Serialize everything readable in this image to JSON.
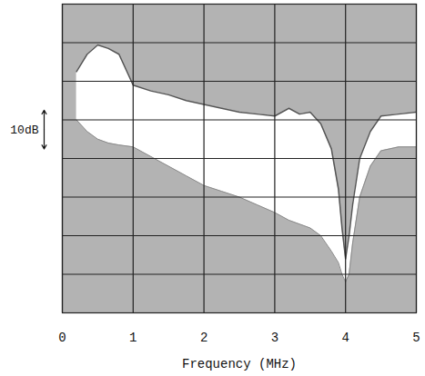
{
  "chart_data": {
    "type": "area",
    "x_label": "Frequency (MHz)",
    "x": [
      0.2,
      0.35,
      0.5,
      0.65,
      0.8,
      1.0,
      1.25,
      1.5,
      1.75,
      2.0,
      2.25,
      2.5,
      2.75,
      3.0,
      3.2,
      3.35,
      3.5,
      3.65,
      3.8,
      3.9,
      3.95,
      4.0,
      4.05,
      4.1,
      4.2,
      4.35,
      4.5,
      4.75,
      5.0
    ],
    "series": [
      {
        "color": "#555555",
        "values": [
          -17.5,
          -13,
          -10.6,
          -11.5,
          -13,
          -21,
          -22.5,
          -23.5,
          -25,
          -26,
          -27,
          -28,
          -28.5,
          -29,
          -27,
          -28.5,
          -28,
          -31,
          -37.5,
          -48,
          -58,
          -66,
          -60,
          -52,
          -40,
          -33,
          -29,
          -28.5,
          -28
        ]
      },
      {
        "color": "#8a8a8a",
        "values": [
          -30,
          -33,
          -35,
          -36,
          -36.5,
          -37,
          -39.5,
          -42,
          -44.5,
          -47,
          -48.5,
          -50,
          -52,
          -54,
          -56,
          -57,
          -58,
          -60,
          -64,
          -67,
          -70,
          -72,
          -70,
          -62,
          -50,
          -42,
          -38,
          -37,
          -37
        ]
      }
    ],
    "xlim": [
      0,
      5
    ],
    "xticks": [
      0,
      1,
      2,
      3,
      4,
      5
    ],
    "ylim": [
      -80,
      0
    ],
    "yticks": [
      -80,
      -70,
      -60,
      -50,
      -40,
      -30,
      -20,
      -10,
      0
    ],
    "grid": true,
    "tick_labels": "x",
    "annotations": [
      {
        "text": "10dB",
        "y1": -27.5,
        "y2": -37.5
      }
    ]
  }
}
